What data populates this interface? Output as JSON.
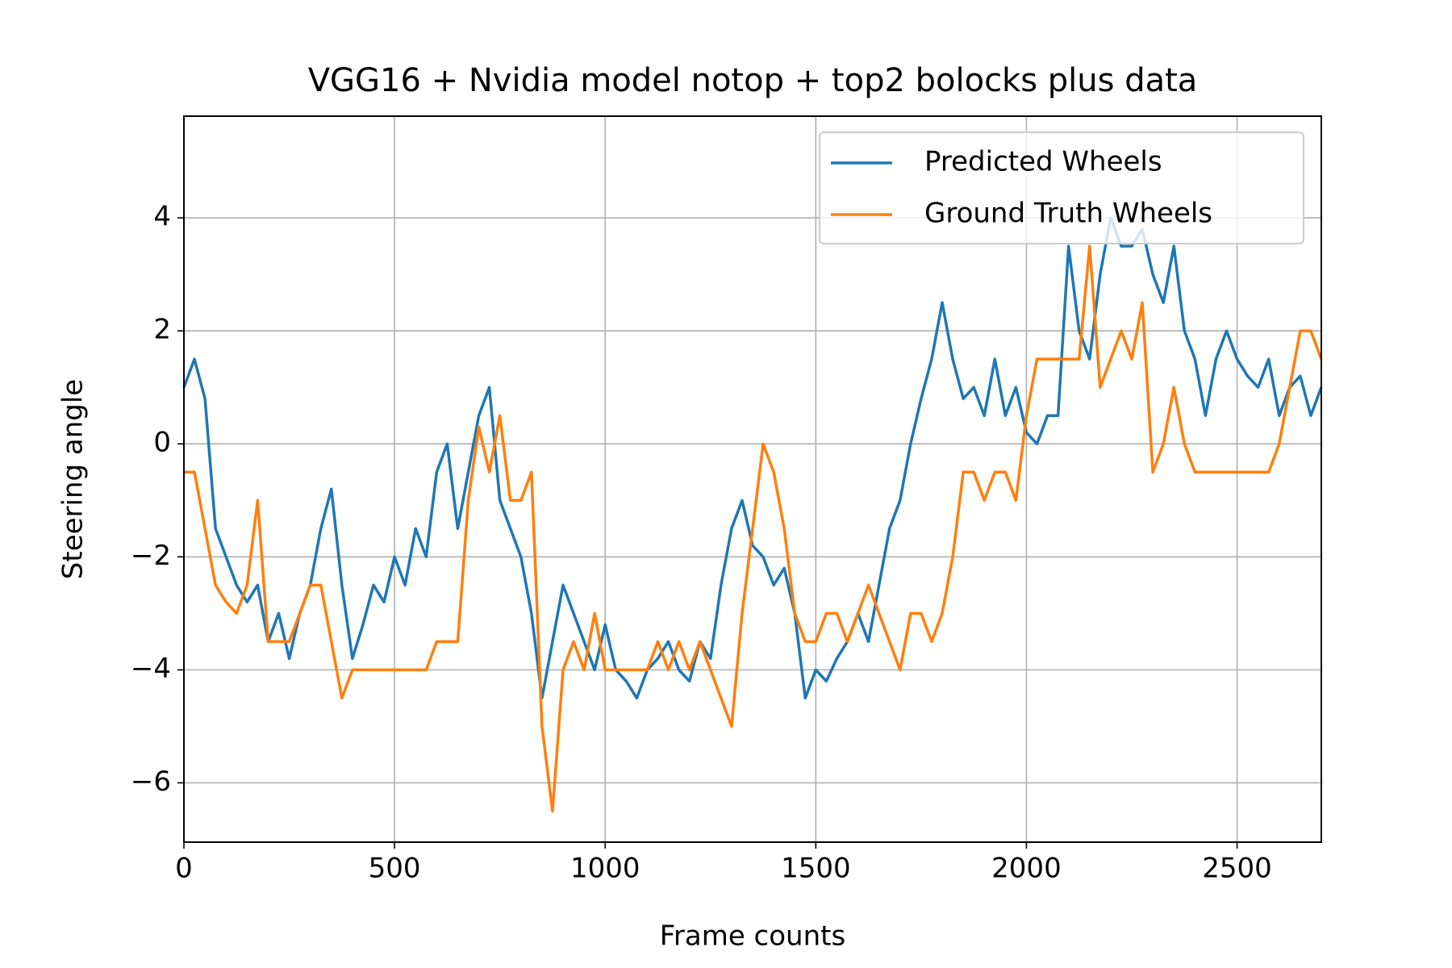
{
  "chart_data": {
    "type": "line",
    "title": "VGG16 + Nvidia model notop + top2 bolocks plus data",
    "x_label": "Frame counts",
    "y_label": "Steering angle",
    "x": [
      0,
      25,
      50,
      75,
      100,
      125,
      150,
      175,
      200,
      225,
      250,
      275,
      300,
      325,
      350,
      375,
      400,
      425,
      450,
      475,
      500,
      525,
      550,
      575,
      600,
      625,
      650,
      675,
      700,
      725,
      750,
      775,
      800,
      825,
      850,
      875,
      900,
      925,
      950,
      975,
      1000,
      1025,
      1050,
      1075,
      1100,
      1125,
      1150,
      1175,
      1200,
      1225,
      1250,
      1275,
      1300,
      1325,
      1350,
      1375,
      1400,
      1425,
      1450,
      1475,
      1500,
      1525,
      1550,
      1575,
      1600,
      1625,
      1650,
      1675,
      1700,
      1725,
      1750,
      1775,
      1800,
      1825,
      1850,
      1875,
      1900,
      1925,
      1950,
      1975,
      2000,
      2025,
      2050,
      2075,
      2100,
      2125,
      2150,
      2175,
      2200,
      2225,
      2250,
      2275,
      2300,
      2325,
      2350,
      2375,
      2400,
      2425,
      2450,
      2475,
      2500,
      2525,
      2550,
      2575,
      2600,
      2625,
      2650,
      2675,
      2700
    ],
    "series": [
      {
        "name": "Predicted Wheels",
        "color": "#1f77b4",
        "values": [
          1.0,
          1.5,
          0.8,
          -1.5,
          -2.0,
          -2.5,
          -2.8,
          -2.5,
          -3.5,
          -3.0,
          -3.8,
          -3.0,
          -2.5,
          -1.5,
          -0.8,
          -2.5,
          -3.8,
          -3.2,
          -2.5,
          -2.8,
          -2.0,
          -2.5,
          -1.5,
          -2.0,
          -0.5,
          0.0,
          -1.5,
          -0.5,
          0.5,
          1.0,
          -1.0,
          -1.5,
          -2.0,
          -3.0,
          -4.5,
          -3.5,
          -2.5,
          -3.0,
          -3.5,
          -4.0,
          -3.2,
          -4.0,
          -4.2,
          -4.5,
          -4.0,
          -3.8,
          -3.5,
          -4.0,
          -4.2,
          -3.5,
          -3.8,
          -2.5,
          -1.5,
          -1.0,
          -1.8,
          -2.0,
          -2.5,
          -2.2,
          -3.0,
          -4.5,
          -4.0,
          -4.2,
          -3.8,
          -3.5,
          -3.0,
          -3.5,
          -2.5,
          -1.5,
          -1.0,
          0.0,
          0.8,
          1.5,
          2.5,
          1.5,
          0.8,
          1.0,
          0.5,
          1.5,
          0.5,
          1.0,
          0.2,
          0.0,
          0.5,
          0.5,
          3.5,
          2.0,
          1.5,
          3.0,
          4.0,
          3.5,
          3.5,
          3.8,
          3.0,
          2.5,
          3.5,
          2.0,
          1.5,
          0.5,
          1.5,
          2.0,
          1.5,
          1.2,
          1.0,
          1.5,
          0.5,
          1.0,
          1.2,
          0.5,
          1.0
        ]
      },
      {
        "name": "Ground Truth Wheels",
        "color": "#ff7f0e",
        "values": [
          -0.5,
          -0.5,
          -1.5,
          -2.5,
          -2.8,
          -3.0,
          -2.5,
          -1.0,
          -3.5,
          -3.5,
          -3.5,
          -3.0,
          -2.5,
          -2.5,
          -3.5,
          -4.5,
          -4.0,
          -4.0,
          -4.0,
          -4.0,
          -4.0,
          -4.0,
          -4.0,
          -4.0,
          -3.5,
          -3.5,
          -3.5,
          -1.0,
          0.3,
          -0.5,
          0.5,
          -1.0,
          -1.0,
          -0.5,
          -5.0,
          -6.5,
          -4.0,
          -3.5,
          -4.0,
          -3.0,
          -4.0,
          -4.0,
          -4.0,
          -4.0,
          -4.0,
          -3.5,
          -4.0,
          -3.5,
          -4.0,
          -3.5,
          -4.0,
          -4.5,
          -5.0,
          -3.0,
          -1.5,
          0.0,
          -0.5,
          -1.5,
          -3.0,
          -3.5,
          -3.5,
          -3.0,
          -3.0,
          -3.5,
          -3.0,
          -2.5,
          -3.0,
          -3.5,
          -4.0,
          -3.0,
          -3.0,
          -3.5,
          -3.0,
          -2.0,
          -0.5,
          -0.5,
          -1.0,
          -0.5,
          -0.5,
          -1.0,
          0.5,
          1.5,
          1.5,
          1.5,
          1.5,
          1.5,
          3.5,
          1.0,
          1.5,
          2.0,
          1.5,
          2.5,
          -0.5,
          0.0,
          1.0,
          0.0,
          -0.5,
          -0.5,
          -0.5,
          -0.5,
          -0.5,
          -0.5,
          -0.5,
          -0.5,
          0.0,
          1.0,
          2.0,
          2.0,
          1.5
        ]
      }
    ],
    "xlim": [
      0,
      2700
    ],
    "ylim": [
      -7.05,
      5.8
    ],
    "xticks": [
      0,
      500,
      1000,
      1500,
      2000,
      2500
    ],
    "yticks": [
      {
        "value": -6,
        "label": "−6"
      },
      {
        "value": -4,
        "label": "−4"
      },
      {
        "value": -2,
        "label": "−2"
      },
      0,
      2,
      4
    ],
    "grid": true,
    "legend": "upper right"
  }
}
